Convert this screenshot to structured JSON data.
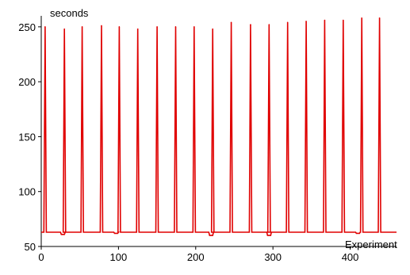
{
  "chart_data": {
    "type": "line",
    "title": "",
    "xlabel": "Experiment",
    "ylabel": "seconds",
    "xlim": [
      0,
      460
    ],
    "ylim": [
      50,
      260
    ],
    "xticks": [
      0,
      100,
      200,
      300,
      400
    ],
    "yticks": [
      50,
      100,
      150,
      200,
      250
    ],
    "grid": false,
    "legend": "none",
    "color": "#e00000",
    "baseline": 63,
    "spikes": [
      {
        "x": 5,
        "y": 250
      },
      {
        "x": 30,
        "y": 248
      },
      {
        "x": 53,
        "y": 250
      },
      {
        "x": 78,
        "y": 251
      },
      {
        "x": 101,
        "y": 250
      },
      {
        "x": 125,
        "y": 248
      },
      {
        "x": 150,
        "y": 250
      },
      {
        "x": 174,
        "y": 250
      },
      {
        "x": 198,
        "y": 250
      },
      {
        "x": 222,
        "y": 248
      },
      {
        "x": 246,
        "y": 254
      },
      {
        "x": 271,
        "y": 252
      },
      {
        "x": 295,
        "y": 252
      },
      {
        "x": 319,
        "y": 254
      },
      {
        "x": 343,
        "y": 255
      },
      {
        "x": 367,
        "y": 256
      },
      {
        "x": 391,
        "y": 256
      },
      {
        "x": 415,
        "y": 258
      },
      {
        "x": 438,
        "y": 258
      }
    ],
    "dips": [
      {
        "x": 28,
        "y": 61
      },
      {
        "x": 97,
        "y": 62
      },
      {
        "x": 220,
        "y": 60
      },
      {
        "x": 295,
        "y": 60
      },
      {
        "x": 410,
        "y": 62
      }
    ]
  }
}
